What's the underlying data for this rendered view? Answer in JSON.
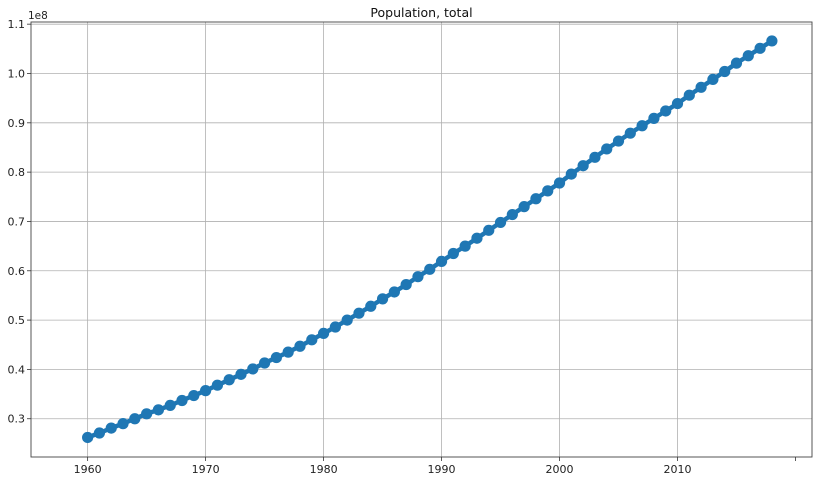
{
  "chart_data": {
    "type": "line",
    "title": "Population, total",
    "xlabel": "",
    "ylabel": "",
    "y_offset_label": "1e8",
    "xlim": [
      1955.2,
      2021.4
    ],
    "ylim": [
      0.2224,
      1.1044
    ],
    "x_ticks": [
      1960,
      1970,
      1980,
      1990,
      2000,
      2010
    ],
    "x_tick_labels": [
      "1960",
      "1970",
      "1980",
      "1990",
      "2000",
      "2010"
    ],
    "y_ticks": [
      0.3,
      0.4,
      0.5,
      0.6,
      0.7,
      0.8,
      0.9,
      1.0,
      1.1
    ],
    "y_tick_labels": [
      "0.3",
      "0.4",
      "0.5",
      "0.6",
      "0.7",
      "0.8",
      "0.9",
      "1.0",
      "1.1"
    ],
    "grid": true,
    "legend": "none",
    "series": [
      {
        "color": "#1f77b4",
        "marker": "circle",
        "x": [
          1960,
          1961,
          1962,
          1963,
          1964,
          1965,
          1966,
          1967,
          1968,
          1969,
          1970,
          1971,
          1972,
          1973,
          1974,
          1975,
          1976,
          1977,
          1978,
          1979,
          1980,
          1981,
          1982,
          1983,
          1984,
          1985,
          1986,
          1987,
          1988,
          1989,
          1990,
          1991,
          1992,
          1993,
          1994,
          1995,
          1996,
          1997,
          1998,
          1999,
          2000,
          2001,
          2002,
          2003,
          2004,
          2005,
          2006,
          2007,
          2008,
          2009,
          2010,
          2011,
          2012,
          2013,
          2014,
          2015,
          2016,
          2017,
          2018
        ],
        "values": [
          0.262,
          0.271,
          0.281,
          0.29,
          0.3,
          0.31,
          0.318,
          0.327,
          0.337,
          0.347,
          0.357,
          0.368,
          0.379,
          0.39,
          0.401,
          0.413,
          0.424,
          0.435,
          0.447,
          0.46,
          0.473,
          0.486,
          0.5,
          0.514,
          0.528,
          0.543,
          0.557,
          0.572,
          0.588,
          0.603,
          0.619,
          0.635,
          0.65,
          0.666,
          0.682,
          0.698,
          0.714,
          0.73,
          0.746,
          0.762,
          0.778,
          0.796,
          0.813,
          0.83,
          0.847,
          0.863,
          0.879,
          0.894,
          0.909,
          0.924,
          0.939,
          0.956,
          0.972,
          0.988,
          1.004,
          1.021,
          1.036,
          1.051,
          1.066
        ]
      }
    ]
  }
}
